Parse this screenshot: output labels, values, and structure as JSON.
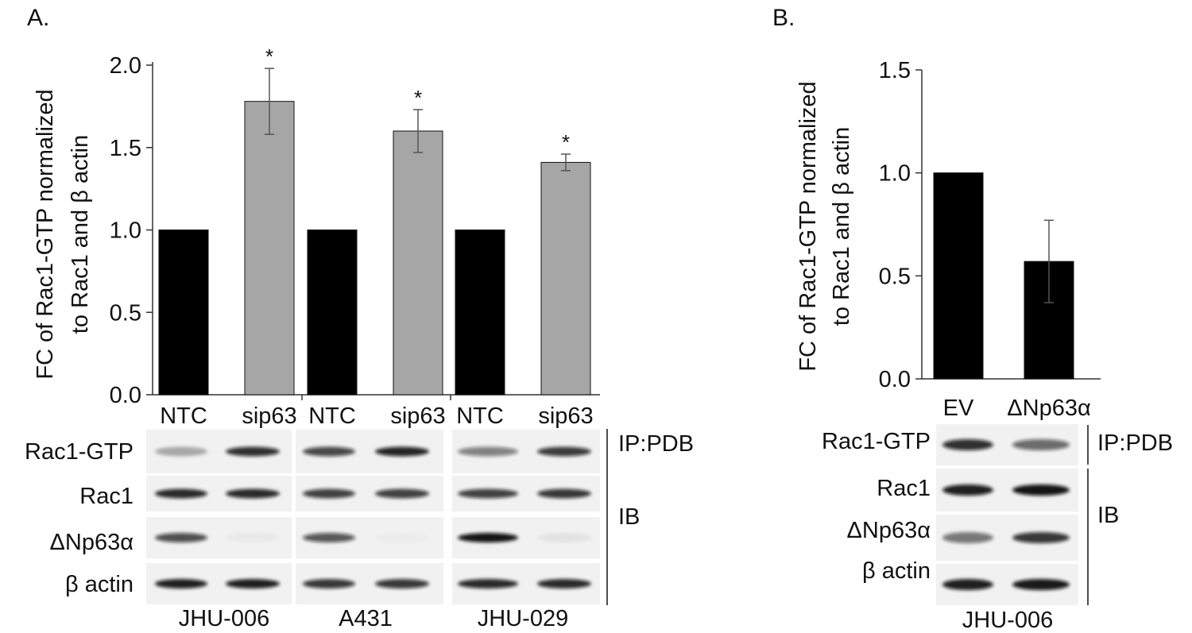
{
  "panels": {
    "a": {
      "letter": "A.",
      "ylabel_lines": [
        "FC of Rac1-GTP normalized",
        "to Rac1 and  β actin"
      ],
      "chart_data": {
        "type": "bar",
        "categories": [
          "NTC",
          "sip63",
          "NTC",
          "sip63",
          "NTC",
          "sip63"
        ],
        "values": [
          1.0,
          1.78,
          1.0,
          1.6,
          1.0,
          1.41
        ],
        "errors": [
          0.0,
          0.2,
          0.0,
          0.13,
          0.0,
          0.05
        ],
        "colors": [
          "#000000",
          "#a6a6a6",
          "#000000",
          "#a6a6a6",
          "#000000",
          "#a6a6a6"
        ],
        "significance": [
          "",
          "*",
          "",
          "*",
          "",
          "*"
        ],
        "ylim": [
          0,
          2.0
        ],
        "yticks": [
          "0.0",
          "0.5",
          "1.0",
          "1.5",
          "2.0"
        ],
        "xlabel": "",
        "grid": false,
        "legend": "none"
      },
      "blot_rows": [
        "Rac1-GTP",
        "Rac1",
        "ΔNp63α",
        "β actin"
      ],
      "groups": [
        "IP:PDB",
        "IB"
      ],
      "cell_lines": [
        "JHU-006",
        "A431",
        "JHU-029"
      ],
      "band_intensity": [
        [
          0.3,
          0.85,
          0.75,
          0.9,
          0.5,
          0.8
        ],
        [
          0.88,
          0.88,
          0.78,
          0.78,
          0.78,
          0.82
        ],
        [
          0.72,
          0.03,
          0.68,
          0.02,
          0.97,
          0.06
        ],
        [
          0.92,
          0.92,
          0.82,
          0.82,
          0.88,
          0.88
        ]
      ]
    },
    "b": {
      "letter": "B.",
      "ylabel_lines": [
        "FC of Rac1-GTP normalized",
        "to Rac1 and  β actin"
      ],
      "chart_data": {
        "type": "bar",
        "categories": [
          "EV",
          "ΔNp63α"
        ],
        "values": [
          1.0,
          0.57
        ],
        "errors": [
          0.0,
          0.2
        ],
        "colors": [
          "#000000",
          "#000000"
        ],
        "ylim": [
          0,
          1.5
        ],
        "yticks": [
          "0.0",
          "0.5",
          "1.0",
          "1.5"
        ],
        "xlabel": "",
        "grid": false,
        "legend": "none"
      },
      "blot_rows": [
        "Rac1-GTP",
        "Rac1",
        "ΔNp63α",
        "β actin"
      ],
      "groups": [
        "IP:PDB",
        "IB"
      ],
      "cell_lines": [
        "JHU-006"
      ],
      "band_intensity": [
        [
          0.85,
          0.6
        ],
        [
          0.92,
          0.97
        ],
        [
          0.55,
          0.82
        ],
        [
          0.92,
          0.95
        ]
      ]
    }
  }
}
